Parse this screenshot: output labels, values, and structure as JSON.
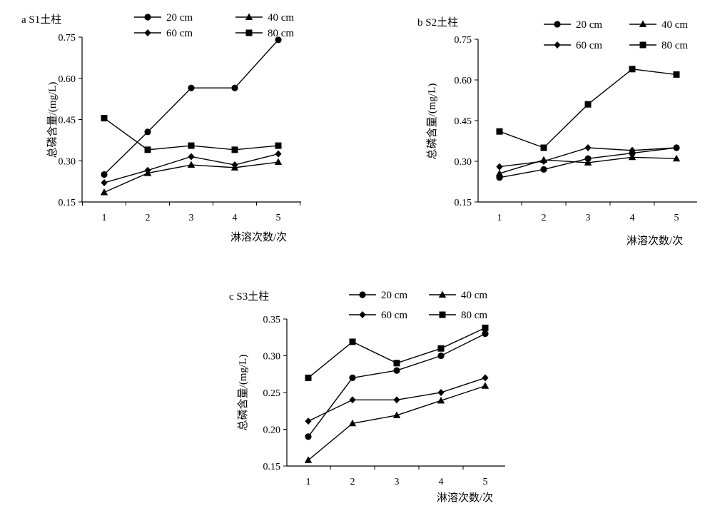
{
  "chart_data": [
    {
      "type": "line",
      "title": "a S1土柱",
      "xlabel": "淋溶次数/次",
      "ylabel": "总磷含量/(mg/L)",
      "x": [
        1,
        2,
        3,
        4,
        5
      ],
      "x_tick_labels": [
        "1",
        "2",
        "3",
        "4",
        "5"
      ],
      "ylim": [
        0.15,
        0.75
      ],
      "y_ticks": [
        0.15,
        0.3,
        0.45,
        0.6,
        0.75
      ],
      "y_tick_labels": [
        "0.15",
        "0.30",
        "0.45",
        "0.60",
        "0.75"
      ],
      "grid": false,
      "legend_position": "top",
      "series": [
        {
          "name": "20 cm",
          "marker": "circle",
          "values": [
            0.25,
            0.405,
            0.565,
            0.565,
            0.74
          ]
        },
        {
          "name": "40 cm",
          "marker": "triangle",
          "values": [
            0.185,
            0.255,
            0.285,
            0.275,
            0.295
          ]
        },
        {
          "name": "60 cm",
          "marker": "diamond",
          "values": [
            0.22,
            0.265,
            0.315,
            0.285,
            0.325
          ]
        },
        {
          "name": "80 cm",
          "marker": "square",
          "values": [
            0.455,
            0.34,
            0.355,
            0.34,
            0.355
          ]
        }
      ]
    },
    {
      "type": "line",
      "title": "b S2土柱",
      "xlabel": "淋溶次数/次",
      "ylabel": "总磷含量/(mg/L)",
      "x": [
        1,
        2,
        3,
        4,
        5
      ],
      "x_tick_labels": [
        "1",
        "2",
        "3",
        "4",
        "5"
      ],
      "ylim": [
        0.15,
        0.75
      ],
      "y_ticks": [
        0.15,
        0.3,
        0.45,
        0.6,
        0.75
      ],
      "y_tick_labels": [
        "0.15",
        "0.30",
        "0.45",
        "0.60",
        "0.75"
      ],
      "grid": false,
      "legend_position": "top",
      "series": [
        {
          "name": "20 cm",
          "marker": "circle",
          "values": [
            0.24,
            0.27,
            0.31,
            0.33,
            0.35
          ]
        },
        {
          "name": "40 cm",
          "marker": "triangle",
          "values": [
            0.255,
            0.305,
            0.295,
            0.315,
            0.31
          ]
        },
        {
          "name": "60 cm",
          "marker": "diamond",
          "values": [
            0.28,
            0.3,
            0.35,
            0.34,
            0.35
          ]
        },
        {
          "name": "80 cm",
          "marker": "square",
          "values": [
            0.41,
            0.35,
            0.51,
            0.64,
            0.62
          ]
        }
      ]
    },
    {
      "type": "line",
      "title": "c S3土柱",
      "xlabel": "淋溶次数/次",
      "ylabel": "总磷含量/(mg/L)",
      "x": [
        1,
        2,
        3,
        4,
        5
      ],
      "x_tick_labels": [
        "1",
        "2",
        "3",
        "4",
        "5"
      ],
      "ylim": [
        0.15,
        0.35
      ],
      "y_ticks": [
        0.15,
        0.2,
        0.25,
        0.3,
        0.35
      ],
      "y_tick_labels": [
        "0.15",
        "0.20",
        "0.25",
        "0.30",
        "0.35"
      ],
      "grid": false,
      "legend_position": "top",
      "series": [
        {
          "name": "20 cm",
          "marker": "circle",
          "values": [
            0.19,
            0.27,
            0.28,
            0.3,
            0.33
          ]
        },
        {
          "name": "40 cm",
          "marker": "triangle",
          "values": [
            0.158,
            0.208,
            0.219,
            0.239,
            0.259
          ]
        },
        {
          "name": "60 cm",
          "marker": "diamond",
          "values": [
            0.211,
            0.24,
            0.24,
            0.25,
            0.27
          ]
        },
        {
          "name": "80 cm",
          "marker": "square",
          "values": [
            0.27,
            0.319,
            0.29,
            0.31,
            0.338
          ]
        }
      ]
    }
  ]
}
